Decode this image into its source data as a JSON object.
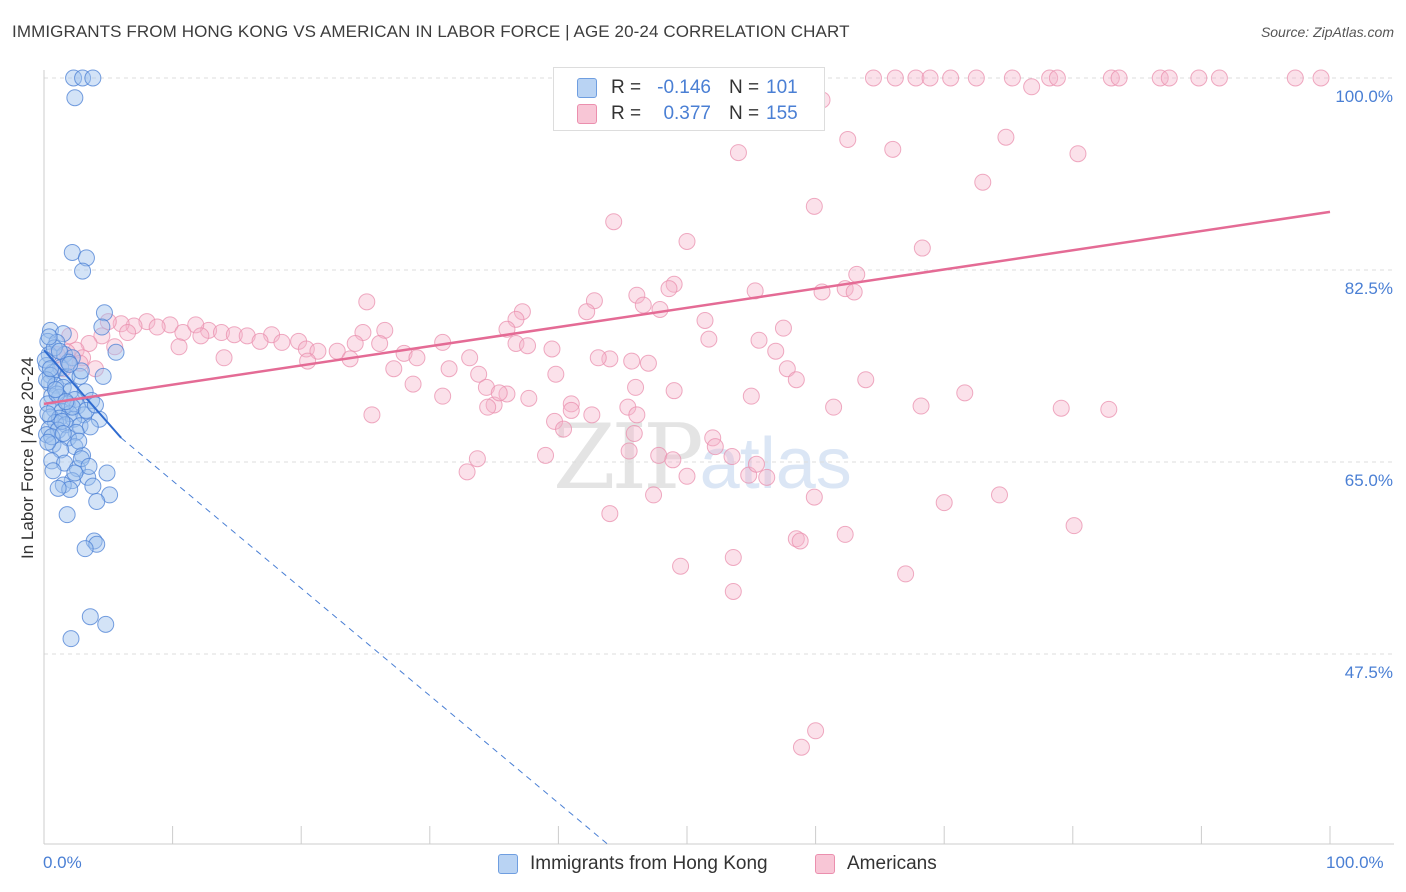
{
  "title": "IMMIGRANTS FROM HONG KONG VS AMERICAN IN LABOR FORCE | AGE 20-24 CORRELATION CHART",
  "source": "Source: ZipAtlas.com",
  "watermark": {
    "zip": "ZIP",
    "atlas": "atlas"
  },
  "colors": {
    "blue": "#4a7fd4",
    "blue_fill": "#9ec2ee",
    "pink": "#e46b95",
    "pink_fill": "#f4b5ca",
    "grid": "#dddddd"
  },
  "legend_top": {
    "rows": [
      {
        "r_label": "R =",
        "r_value": "-0.146",
        "n_label": "N =",
        "n_value": "101"
      },
      {
        "r_label": "R =",
        "r_value": "0.377",
        "n_label": "N =",
        "n_value": "155"
      }
    ]
  },
  "legend_bottom": [
    "Immigrants from Hong Kong",
    "Americans"
  ],
  "chart_data": {
    "type": "scatter",
    "title": "IMMIGRANTS FROM HONG KONG VS AMERICAN IN LABOR FORCE | AGE 20-24 CORRELATION CHART",
    "xlabel": "",
    "ylabel": "In Labor Force | Age 20-24",
    "xlim": [
      0,
      100
    ],
    "ylim": [
      30,
      102
    ],
    "x_tick_labels": [
      "0.0%",
      "100.0%"
    ],
    "y_ticks": [
      47.5,
      65.0,
      82.5,
      100.0
    ],
    "y_tick_labels": [
      "47.5%",
      "65.0%",
      "82.5%",
      "100.0%"
    ],
    "grid": true,
    "legend_position": "top-center",
    "series": [
      {
        "name": "Immigrants from Hong Kong",
        "color": "#4a7fd4",
        "r": -0.146,
        "n": 101,
        "trend": {
          "x0": 0.0,
          "y0": 75.2,
          "x1": 6.0,
          "y1": 67.2,
          "extended_x1": 44.0,
          "extended_y1": 30.0
        },
        "points": [
          [
            2.3,
            100
          ],
          [
            3.0,
            100
          ],
          [
            3.8,
            100
          ],
          [
            2.4,
            98.2
          ],
          [
            2.2,
            84.1
          ],
          [
            3.3,
            83.6
          ],
          [
            3.0,
            82.4
          ],
          [
            4.7,
            78.6
          ],
          [
            4.5,
            77.3
          ],
          [
            0.5,
            77.0
          ],
          [
            1.5,
            76.7
          ],
          [
            0.3,
            76.0
          ],
          [
            1.0,
            75.9
          ],
          [
            5.6,
            75.0
          ],
          [
            0.4,
            74.8
          ],
          [
            1.6,
            74.8
          ],
          [
            2.2,
            74.5
          ],
          [
            0.2,
            73.8
          ],
          [
            1.3,
            73.6
          ],
          [
            0.7,
            73.2
          ],
          [
            0.5,
            72.9
          ],
          [
            1.8,
            72.8
          ],
          [
            2.8,
            72.8
          ],
          [
            4.6,
            72.8
          ],
          [
            0.4,
            72.2
          ],
          [
            0.9,
            72.0
          ],
          [
            1.5,
            71.8
          ],
          [
            2.1,
            71.5
          ],
          [
            3.2,
            71.4
          ],
          [
            0.6,
            71.0
          ],
          [
            1.2,
            70.9
          ],
          [
            2.4,
            70.7
          ],
          [
            3.7,
            70.6
          ],
          [
            0.3,
            70.3
          ],
          [
            1.8,
            70.3
          ],
          [
            2.6,
            70.1
          ],
          [
            0.8,
            69.8
          ],
          [
            1.4,
            69.6
          ],
          [
            2.0,
            69.4
          ],
          [
            3.1,
            69.3
          ],
          [
            0.5,
            69.1
          ],
          [
            1.2,
            69.0
          ],
          [
            2.3,
            68.9
          ],
          [
            4.3,
            68.9
          ],
          [
            0.9,
            68.6
          ],
          [
            1.7,
            68.4
          ],
          [
            2.8,
            68.3
          ],
          [
            3.6,
            68.2
          ],
          [
            0.4,
            68.0
          ],
          [
            1.1,
            67.9
          ],
          [
            2.5,
            67.7
          ],
          [
            0.2,
            67.5
          ],
          [
            1.9,
            67.2
          ],
          [
            0.7,
            66.6
          ],
          [
            2.4,
            66.4
          ],
          [
            1.3,
            66.1
          ],
          [
            3.0,
            65.6
          ],
          [
            0.6,
            65.1
          ],
          [
            1.6,
            64.9
          ],
          [
            2.6,
            64.4
          ],
          [
            4.9,
            64.0
          ],
          [
            3.4,
            63.6
          ],
          [
            2.2,
            63.3
          ],
          [
            1.5,
            62.9
          ],
          [
            3.8,
            62.8
          ],
          [
            2.0,
            62.5
          ],
          [
            5.1,
            62.0
          ],
          [
            4.1,
            61.4
          ],
          [
            1.8,
            60.2
          ],
          [
            3.9,
            57.8
          ],
          [
            4.1,
            57.5
          ],
          [
            3.2,
            57.1
          ],
          [
            3.6,
            50.9
          ],
          [
            4.8,
            50.2
          ],
          [
            2.1,
            48.9
          ],
          [
            0.8,
            75.4
          ],
          [
            1.9,
            74.1
          ],
          [
            2.9,
            73.3
          ],
          [
            0.2,
            72.5
          ],
          [
            1.0,
            71.2
          ],
          [
            2.2,
            70.0
          ],
          [
            3.3,
            69.7
          ],
          [
            1.4,
            68.7
          ],
          [
            0.6,
            67.3
          ],
          [
            2.7,
            66.9
          ],
          [
            0.4,
            76.4
          ],
          [
            1.2,
            75.1
          ],
          [
            0.1,
            74.3
          ],
          [
            2.0,
            73.9
          ],
          [
            0.9,
            71.6
          ],
          [
            1.7,
            70.5
          ],
          [
            0.3,
            69.4
          ],
          [
            1.5,
            67.6
          ],
          [
            2.9,
            65.3
          ],
          [
            0.7,
            64.2
          ],
          [
            3.5,
            64.6
          ],
          [
            2.4,
            64.0
          ],
          [
            1.1,
            62.6
          ],
          [
            0.3,
            66.8
          ],
          [
            4.0,
            70.2
          ],
          [
            0.5,
            73.5
          ]
        ]
      },
      {
        "name": "Americans",
        "color": "#e46b95",
        "r": 0.377,
        "n": 155,
        "trend": {
          "x0": 0.0,
          "y0": 70.3,
          "x1": 100.0,
          "y1": 87.8
        },
        "points": [
          [
            64.5,
            100
          ],
          [
            66.2,
            100
          ],
          [
            67.8,
            100
          ],
          [
            68.9,
            100
          ],
          [
            70.5,
            100
          ],
          [
            72.5,
            100
          ],
          [
            75.3,
            100
          ],
          [
            78.2,
            100
          ],
          [
            78.8,
            100
          ],
          [
            83.0,
            100
          ],
          [
            83.6,
            100
          ],
          [
            86.8,
            100
          ],
          [
            87.5,
            100
          ],
          [
            89.8,
            100
          ],
          [
            91.4,
            100
          ],
          [
            97.3,
            100
          ],
          [
            99.3,
            100
          ],
          [
            76.8,
            99.2
          ],
          [
            60.5,
            98.0
          ],
          [
            62.5,
            94.4
          ],
          [
            66.0,
            93.5
          ],
          [
            54.0,
            93.2
          ],
          [
            74.8,
            94.6
          ],
          [
            80.4,
            93.1
          ],
          [
            73.0,
            90.5
          ],
          [
            59.9,
            88.3
          ],
          [
            44.3,
            86.9
          ],
          [
            50.0,
            85.1
          ],
          [
            68.3,
            84.5
          ],
          [
            63.2,
            82.1
          ],
          [
            49.0,
            81.2
          ],
          [
            48.6,
            80.8
          ],
          [
            46.1,
            80.2
          ],
          [
            42.8,
            79.7
          ],
          [
            46.6,
            79.3
          ],
          [
            47.9,
            78.9
          ],
          [
            55.3,
            80.6
          ],
          [
            60.5,
            80.5
          ],
          [
            62.3,
            80.8
          ],
          [
            63.0,
            80.5
          ],
          [
            25.1,
            79.6
          ],
          [
            37.2,
            78.7
          ],
          [
            36.7,
            78.0
          ],
          [
            51.4,
            77.9
          ],
          [
            42.2,
            78.7
          ],
          [
            57.5,
            77.2
          ],
          [
            36.0,
            77.1
          ],
          [
            51.7,
            76.2
          ],
          [
            26.5,
            77.0
          ],
          [
            55.6,
            76.1
          ],
          [
            56.9,
            75.1
          ],
          [
            17.7,
            76.6
          ],
          [
            18.5,
            75.9
          ],
          [
            19.8,
            76.0
          ],
          [
            20.4,
            75.3
          ],
          [
            21.3,
            75.1
          ],
          [
            22.8,
            75.1
          ],
          [
            24.8,
            76.8
          ],
          [
            24.2,
            75.8
          ],
          [
            26.1,
            75.8
          ],
          [
            28.0,
            74.9
          ],
          [
            29.0,
            74.5
          ],
          [
            31.0,
            75.9
          ],
          [
            33.1,
            74.5
          ],
          [
            36.7,
            75.8
          ],
          [
            37.6,
            75.6
          ],
          [
            39.5,
            75.3
          ],
          [
            44.0,
            74.4
          ],
          [
            47.0,
            74.0
          ],
          [
            57.8,
            73.5
          ],
          [
            12.8,
            77.0
          ],
          [
            13.8,
            76.8
          ],
          [
            14.8,
            76.6
          ],
          [
            15.8,
            76.5
          ],
          [
            16.8,
            76.0
          ],
          [
            9.8,
            77.5
          ],
          [
            10.8,
            76.8
          ],
          [
            11.8,
            77.5
          ],
          [
            12.2,
            76.5
          ],
          [
            8.0,
            77.8
          ],
          [
            8.8,
            77.3
          ],
          [
            7.0,
            77.4
          ],
          [
            6.0,
            77.6
          ],
          [
            5.0,
            77.8
          ],
          [
            4.5,
            76.5
          ],
          [
            3.5,
            75.8
          ],
          [
            2.5,
            75.2
          ],
          [
            1.8,
            75.0
          ],
          [
            2.0,
            76.5
          ],
          [
            3.0,
            74.5
          ],
          [
            4.0,
            73.5
          ],
          [
            6.5,
            76.8
          ],
          [
            5.5,
            75.5
          ],
          [
            1.0,
            74.8
          ],
          [
            1.5,
            73.5
          ],
          [
            2.8,
            74.0
          ],
          [
            10.5,
            75.5
          ],
          [
            14.0,
            74.5
          ],
          [
            20.5,
            74.2
          ],
          [
            23.8,
            74.4
          ],
          [
            27.2,
            73.5
          ],
          [
            31.5,
            73.5
          ],
          [
            33.8,
            73.0
          ],
          [
            39.8,
            73.0
          ],
          [
            43.1,
            74.5
          ],
          [
            45.7,
            74.2
          ],
          [
            46.0,
            71.8
          ],
          [
            49.0,
            71.5
          ],
          [
            55.0,
            71.0
          ],
          [
            58.5,
            72.5
          ],
          [
            63.9,
            72.5
          ],
          [
            71.6,
            71.3
          ],
          [
            36.0,
            71.2
          ],
          [
            34.4,
            71.8
          ],
          [
            28.7,
            72.1
          ],
          [
            31.0,
            71.0
          ],
          [
            35.0,
            70.2
          ],
          [
            34.5,
            70.0
          ],
          [
            41.0,
            70.3
          ],
          [
            41.0,
            69.7
          ],
          [
            37.7,
            70.8
          ],
          [
            35.4,
            71.3
          ],
          [
            42.6,
            69.3
          ],
          [
            45.4,
            70.0
          ],
          [
            46.1,
            69.3
          ],
          [
            45.9,
            67.6
          ],
          [
            68.2,
            70.1
          ],
          [
            82.8,
            69.8
          ],
          [
            79.1,
            69.9
          ],
          [
            61.4,
            70.0
          ],
          [
            25.5,
            69.3
          ],
          [
            39.7,
            68.7
          ],
          [
            40.4,
            68.0
          ],
          [
            45.5,
            66.0
          ],
          [
            47.8,
            65.6
          ],
          [
            48.9,
            65.2
          ],
          [
            52.0,
            67.2
          ],
          [
            52.2,
            66.4
          ],
          [
            53.5,
            65.5
          ],
          [
            54.8,
            63.8
          ],
          [
            55.4,
            64.8
          ],
          [
            59.9,
            61.8
          ],
          [
            50.0,
            63.7
          ],
          [
            56.2,
            63.6
          ],
          [
            33.7,
            65.3
          ],
          [
            32.9,
            64.1
          ],
          [
            39.0,
            65.6
          ],
          [
            47.4,
            62.0
          ],
          [
            44.0,
            60.3
          ],
          [
            58.5,
            58.0
          ],
          [
            58.8,
            57.8
          ],
          [
            53.6,
            56.3
          ],
          [
            49.5,
            55.5
          ],
          [
            67.0,
            54.8
          ],
          [
            80.1,
            59.2
          ],
          [
            74.3,
            62.0
          ],
          [
            70.0,
            61.3
          ],
          [
            62.3,
            58.4
          ],
          [
            53.6,
            53.2
          ],
          [
            60.0,
            40.5
          ],
          [
            58.9,
            39.0
          ]
        ]
      }
    ]
  },
  "y_axis_title": "In Labor Force | Age 20-24",
  "x_labels": {
    "left": "0.0%",
    "right": "100.0%"
  }
}
